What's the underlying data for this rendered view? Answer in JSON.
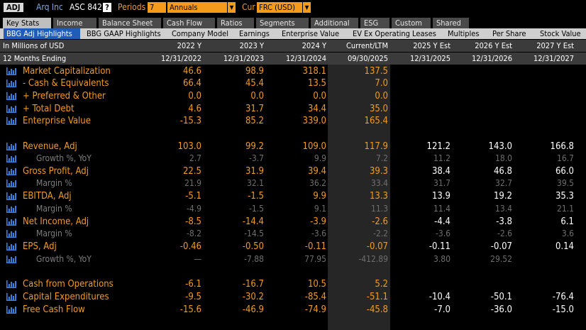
{
  "topbar": {
    "ticker": "ADJ",
    "company": "Arq Inc",
    "standard": "ASC 842",
    "help": "?",
    "periods_label": "Periods",
    "periods_value": "7",
    "periodicity": "Annuals",
    "currency_label": "Cur",
    "currency_value": "FRC (USD)"
  },
  "tabs": [
    "Key Stats",
    "Income",
    "Balance Sheet",
    "Cash Flow",
    "Ratios",
    "Segments",
    "Additional",
    "ESG",
    "Custom",
    "Shared"
  ],
  "active_tab": "Key Stats",
  "subtabs": [
    "BBG Adj Highlights",
    "BBG GAAP Highlights",
    "Company Model",
    "Earnings",
    "Enterprise Value",
    "EV Ex Operating Leases",
    "Multiples",
    "Per Share",
    "Stock Value"
  ],
  "active_subtab": "BBG Adj Highlights",
  "header": {
    "units": "In Millions of USD",
    "period": "12 Months Ending",
    "columns": [
      "2022 Y",
      "2023 Y",
      "2024 Y",
      "Current/LTM",
      "2025 Y Est",
      "2026 Y Est",
      "2027 Y Est"
    ],
    "dates": [
      "12/31/2022",
      "12/31/2023",
      "12/31/2024",
      "09/30/2025",
      "12/31/2025",
      "12/31/2026",
      "12/31/2027"
    ]
  },
  "rows": [
    {
      "label": "Market Capitalization",
      "type": "main",
      "values": [
        "46.6",
        "98.9",
        "318.1",
        "137.5",
        "",
        "",
        ""
      ]
    },
    {
      "label": "- Cash & Equivalents",
      "type": "main",
      "values": [
        "66.4",
        "45.4",
        "13.5",
        "7.0",
        "",
        "",
        ""
      ]
    },
    {
      "label": "+ Preferred & Other",
      "type": "main",
      "values": [
        "0.0",
        "0.0",
        "0.0",
        "0.0",
        "",
        "",
        ""
      ]
    },
    {
      "label": "+ Total Debt",
      "type": "main",
      "values": [
        "4.6",
        "31.7",
        "34.4",
        "35.0",
        "",
        "",
        ""
      ]
    },
    {
      "label": "Enterprise Value",
      "type": "main",
      "values": [
        "-15.3",
        "85.2",
        "339.0",
        "165.4",
        "",
        "",
        ""
      ]
    },
    {
      "label": "Revenue, Adj",
      "type": "main",
      "values": [
        "103.0",
        "99.2",
        "109.0",
        "117.9",
        "121.2",
        "143.0",
        "166.8"
      ]
    },
    {
      "label": "Growth %, YoY",
      "type": "sub",
      "values": [
        "2.7",
        "-3.7",
        "9.9",
        "7.2",
        "11.2",
        "18.0",
        "16.7"
      ]
    },
    {
      "label": "Gross Profit, Adj",
      "type": "main",
      "values": [
        "22.5",
        "31.9",
        "39.4",
        "39.3",
        "38.4",
        "46.8",
        "66.0"
      ]
    },
    {
      "label": "Margin %",
      "type": "sub",
      "values": [
        "21.9",
        "32.1",
        "36.2",
        "33.4",
        "31.7",
        "32.7",
        "39.5"
      ]
    },
    {
      "label": "EBITDA, Adj",
      "type": "main",
      "values": [
        "-5.1",
        "-1.5",
        "9.9",
        "13.3",
        "13.9",
        "19.2",
        "35.3"
      ]
    },
    {
      "label": "Margin %",
      "type": "sub",
      "values": [
        "-4.9",
        "-1.5",
        "9.1",
        "11.3",
        "11.4",
        "13.4",
        "21.1"
      ]
    },
    {
      "label": "Net Income, Adj",
      "type": "main",
      "values": [
        "-8.5",
        "-14.4",
        "-3.9",
        "-2.6",
        "-4.4",
        "-3.8",
        "6.1"
      ]
    },
    {
      "label": "Margin %",
      "type": "sub",
      "values": [
        "-8.2",
        "-14.5",
        "-3.6",
        "-2.2",
        "-3.6",
        "-2.6",
        "3.6"
      ]
    },
    {
      "label": "EPS, Adj",
      "type": "main",
      "values": [
        "-0.46",
        "-0.50",
        "-0.11",
        "-0.07",
        "-0.11",
        "-0.07",
        "0.14"
      ]
    },
    {
      "label": "Growth %, YoY",
      "type": "sub",
      "values": [
        "—",
        "-7.88",
        "77.95",
        "-412.89",
        "3.80",
        "29.52",
        ""
      ]
    },
    {
      "label": "Cash from Operations",
      "type": "main",
      "values": [
        "-6.1",
        "-16.7",
        "10.5",
        "5.2",
        "",
        "",
        ""
      ]
    },
    {
      "label": "Capital Expenditures",
      "type": "main",
      "values": [
        "-9.5",
        "-30.2",
        "-85.4",
        "-51.1",
        "-10.4",
        "-50.1",
        "-76.4"
      ]
    },
    {
      "label": "Free Cash Flow",
      "type": "main",
      "values": [
        "-15.6",
        "-46.9",
        "-74.9",
        "-45.8",
        "-7.0",
        "-36.0",
        "-15.0"
      ]
    }
  ],
  "colors": {
    "accent": "#f59b1c",
    "tab_active": "#1f5db8",
    "header_bg": "#3b3b3b",
    "chart_icon": "#3a7fe0"
  }
}
